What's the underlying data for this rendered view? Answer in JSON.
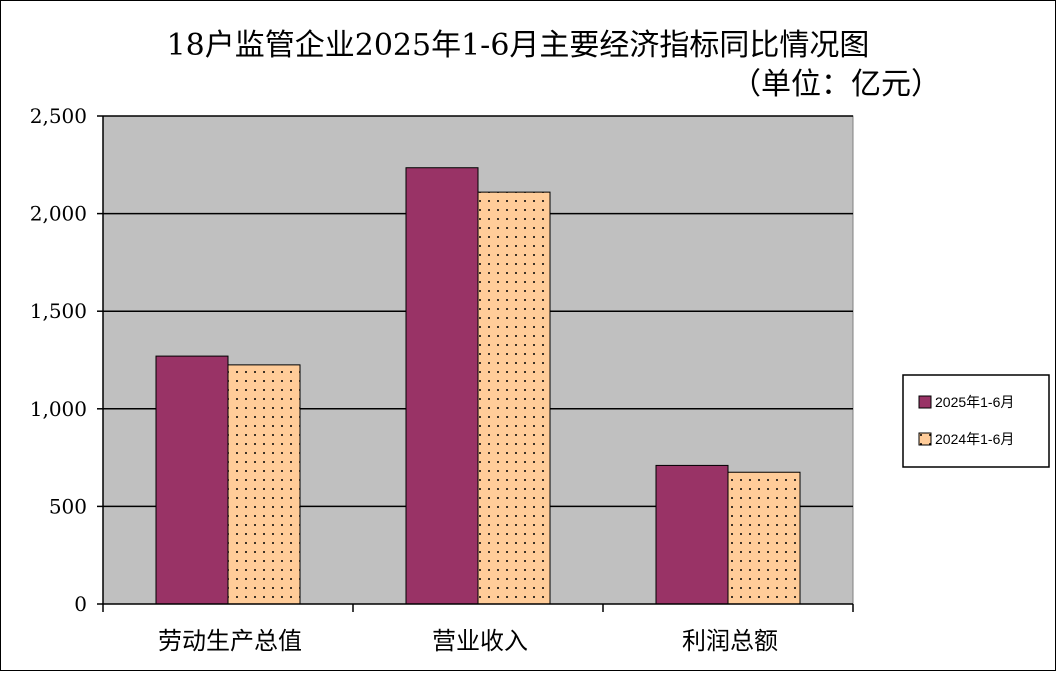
{
  "chart_data": {
    "type": "bar",
    "title": "18户监管企业2025年1-6月主要经济指标同比情况图",
    "subtitle": "（单位：亿元）",
    "categories": [
      "劳动生产总值",
      "营业收入",
      "利润总额"
    ],
    "series": [
      {
        "name": "2025年1-6月",
        "values": [
          1270,
          2235,
          710
        ],
        "color": "#993366",
        "pattern": "solid"
      },
      {
        "name": "2024年1-6月",
        "values": [
          1225,
          2110,
          675
        ],
        "color": "#FFCC99",
        "pattern": "dots"
      }
    ],
    "ylim": [
      0,
      2500
    ],
    "yticks": [
      0,
      500,
      1000,
      1500,
      2000,
      2500
    ],
    "ytick_labels": [
      "0",
      "500",
      "1,000",
      "1,500",
      "2,000",
      "2,500"
    ],
    "xlabel": "",
    "ylabel": "",
    "grid": true,
    "plot_background": "#C0C0C0",
    "legend_position": "right"
  }
}
